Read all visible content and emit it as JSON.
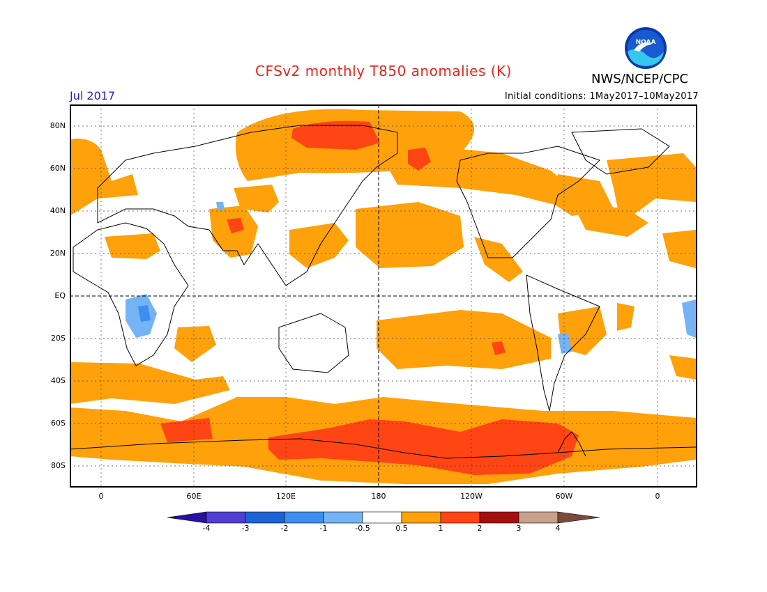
{
  "header": {
    "title": "CFSv2 monthly T850 anomalies (K)",
    "month": "Jul 2017",
    "initial_conditions": "Initial conditions: 1May2017–10May2017",
    "agency": "NWS/NCEP/CPC",
    "logo_text": "NOAA"
  },
  "map": {
    "lat_labels": [
      "80N",
      "60N",
      "40N",
      "20N",
      "EQ",
      "20S",
      "40S",
      "60S",
      "80S"
    ],
    "lon_labels": [
      "0",
      "60E",
      "120E",
      "180",
      "120W",
      "60W",
      "0"
    ],
    "colors": {
      "warm1": "#ffa10a",
      "warm2": "#ff4513",
      "cool1": "#74b3f4",
      "cool2": "#3d8ef0",
      "coast": "#000000"
    }
  },
  "colorbar": {
    "labels": [
      "-4",
      "-3",
      "-2",
      "-1",
      "-0.5",
      "0.5",
      "1",
      "2",
      "3",
      "4"
    ],
    "colors": [
      "#2a0fa3",
      "#4e3fd1",
      "#1e63d6",
      "#3d8ef0",
      "#74b3f4",
      "#ffffff",
      "#ffa10a",
      "#ff4513",
      "#a50f0f",
      "#c8a08c",
      "#7a4a3a"
    ]
  }
}
